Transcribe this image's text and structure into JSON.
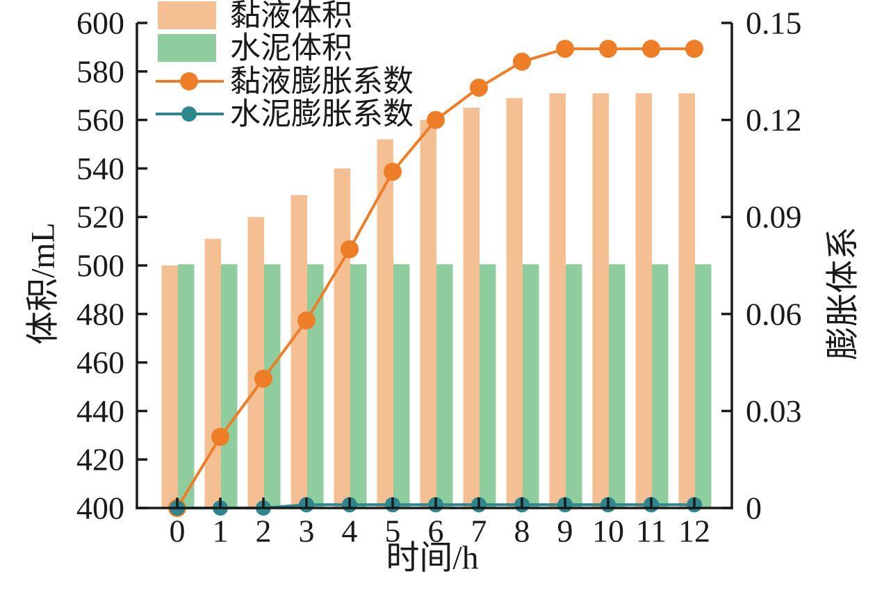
{
  "chart_data": {
    "type": "bar",
    "combo": "grouped-bars + two lines, dual y-axis",
    "x": [
      0,
      1,
      2,
      3,
      4,
      5,
      6,
      7,
      8,
      9,
      10,
      11,
      12
    ],
    "xlabel": "时间/h",
    "ylabel_left": "体积/mL",
    "ylabel_right": "膨胀体系",
    "ylim_left": [
      400,
      600
    ],
    "yticks_left": [
      "400",
      "420",
      "440",
      "460",
      "480",
      "500",
      "520",
      "540",
      "560",
      "580",
      "600"
    ],
    "ylim_right": [
      0,
      0.15
    ],
    "yticks_right": [
      "0",
      "0.03",
      "0.06",
      "0.09",
      "0.12",
      "0.15"
    ],
    "grid": false,
    "legend_position": "top-left",
    "axis_color": "#1a1a1a",
    "text_color": "#1a1a1a",
    "series": [
      {
        "key": "mucus-volume",
        "name": "黏液体积",
        "type": "bar",
        "axis": "left",
        "color": "#F5BF94",
        "values": [
          500,
          511,
          520,
          529,
          540,
          552,
          560,
          565,
          569,
          571,
          571,
          571,
          571
        ]
      },
      {
        "key": "cement-volume",
        "name": "水泥体积",
        "type": "bar",
        "axis": "left",
        "color": "#90CD9E",
        "values": [
          500.5,
          500.5,
          500.5,
          500.5,
          500.5,
          500.5,
          500.5,
          500.5,
          500.5,
          500.5,
          500.5,
          500.5,
          500.5
        ]
      },
      {
        "key": "mucus-expansion-coefficient",
        "name": "黏液膨胀系数",
        "type": "line",
        "axis": "right",
        "color": "#ED7D27",
        "marker_r": 13,
        "values": [
          0,
          0.022,
          0.04,
          0.058,
          0.08,
          0.104,
          0.12,
          0.13,
          0.138,
          0.142,
          0.142,
          0.142,
          0.142
        ]
      },
      {
        "key": "cement-expansion-coefficient",
        "name": "水泥膨胀系数",
        "type": "line",
        "axis": "right",
        "color": "#2C868B",
        "marker_r": 11,
        "values": [
          0,
          0,
          0,
          0.001,
          0.001,
          0.001,
          0.001,
          0.001,
          0.001,
          0.001,
          0.001,
          0.001,
          0.001
        ]
      }
    ]
  }
}
